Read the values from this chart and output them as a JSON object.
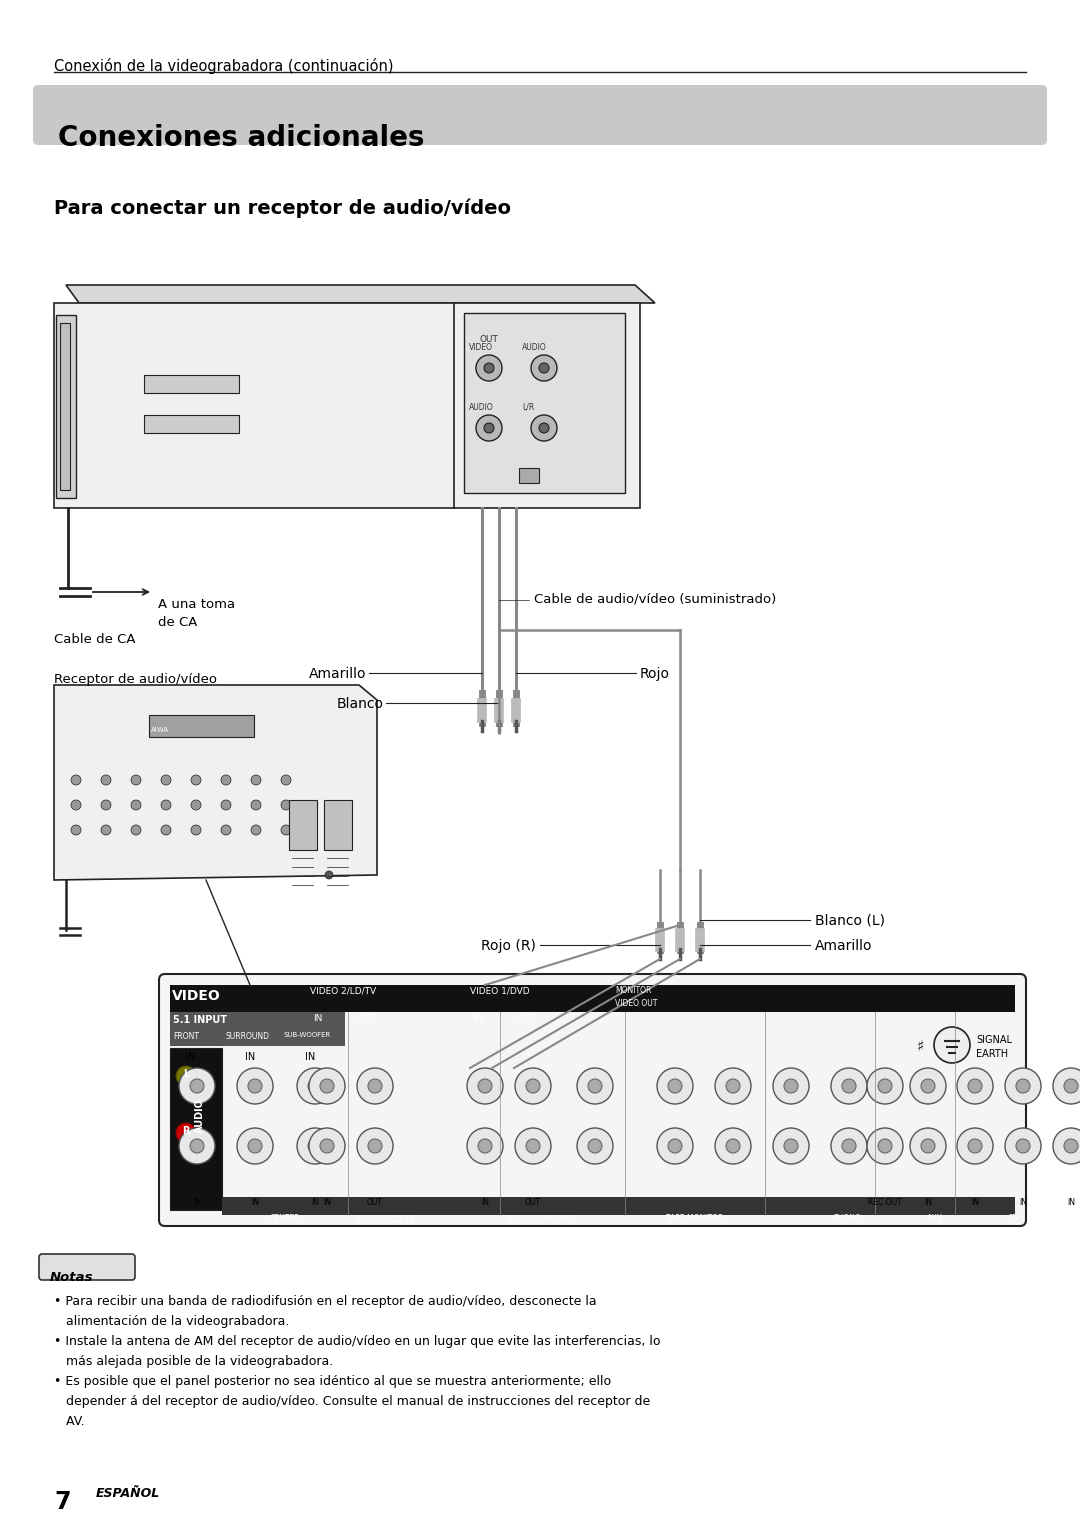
{
  "page_bg": "#ffffff",
  "header_text": "Conexión de la videograbadora (continuación)",
  "title_box_color": "#c8c8c8",
  "title_text": "Conexiones adicionales",
  "subtitle_text": "Para conectar un receptor de audio/vídeo",
  "label_cable_ca": "Cable de CA",
  "label_una_toma": "A una toma",
  "label_de_ca": "de CA",
  "label_amarillo": "Amarillo",
  "label_rojo": "Rojo",
  "label_blanco": "Blanco",
  "label_cable_av": "Cable de audio/vídeo (suministrado)",
  "label_receptor": "Receptor de audio/vídeo",
  "label_blanco_l": "Blanco (L)",
  "label_rojo_r": "Rojo (R)",
  "label_amarillo2": "Amarillo",
  "notas_title": "Notas",
  "notas_lines": [
    "• Para recibir una banda de radiodifusión en el receptor de audio/vídeo, desconecte la",
    "   alimentación de la videograbadora.",
    "• Instale la antena de AM del receptor de audio/vídeo en un lugar que evite las interferencias, lo",
    "   más alejada posible de la videograbadora.",
    "• Es posible que el panel posterior no sea idéntico al que se muestra anteriormente; ello",
    "   depender á del receptor de audio/vídeo. Consulte el manual de instrucciones del receptor de",
    "   AV."
  ],
  "page_number": "7",
  "page_lang": "ESPAÑOL",
  "text_color": "#000000",
  "device_color": "#f0f0f0",
  "device_stroke": "#222222",
  "jack_color": "#dddddd",
  "cable_color": "#888888"
}
